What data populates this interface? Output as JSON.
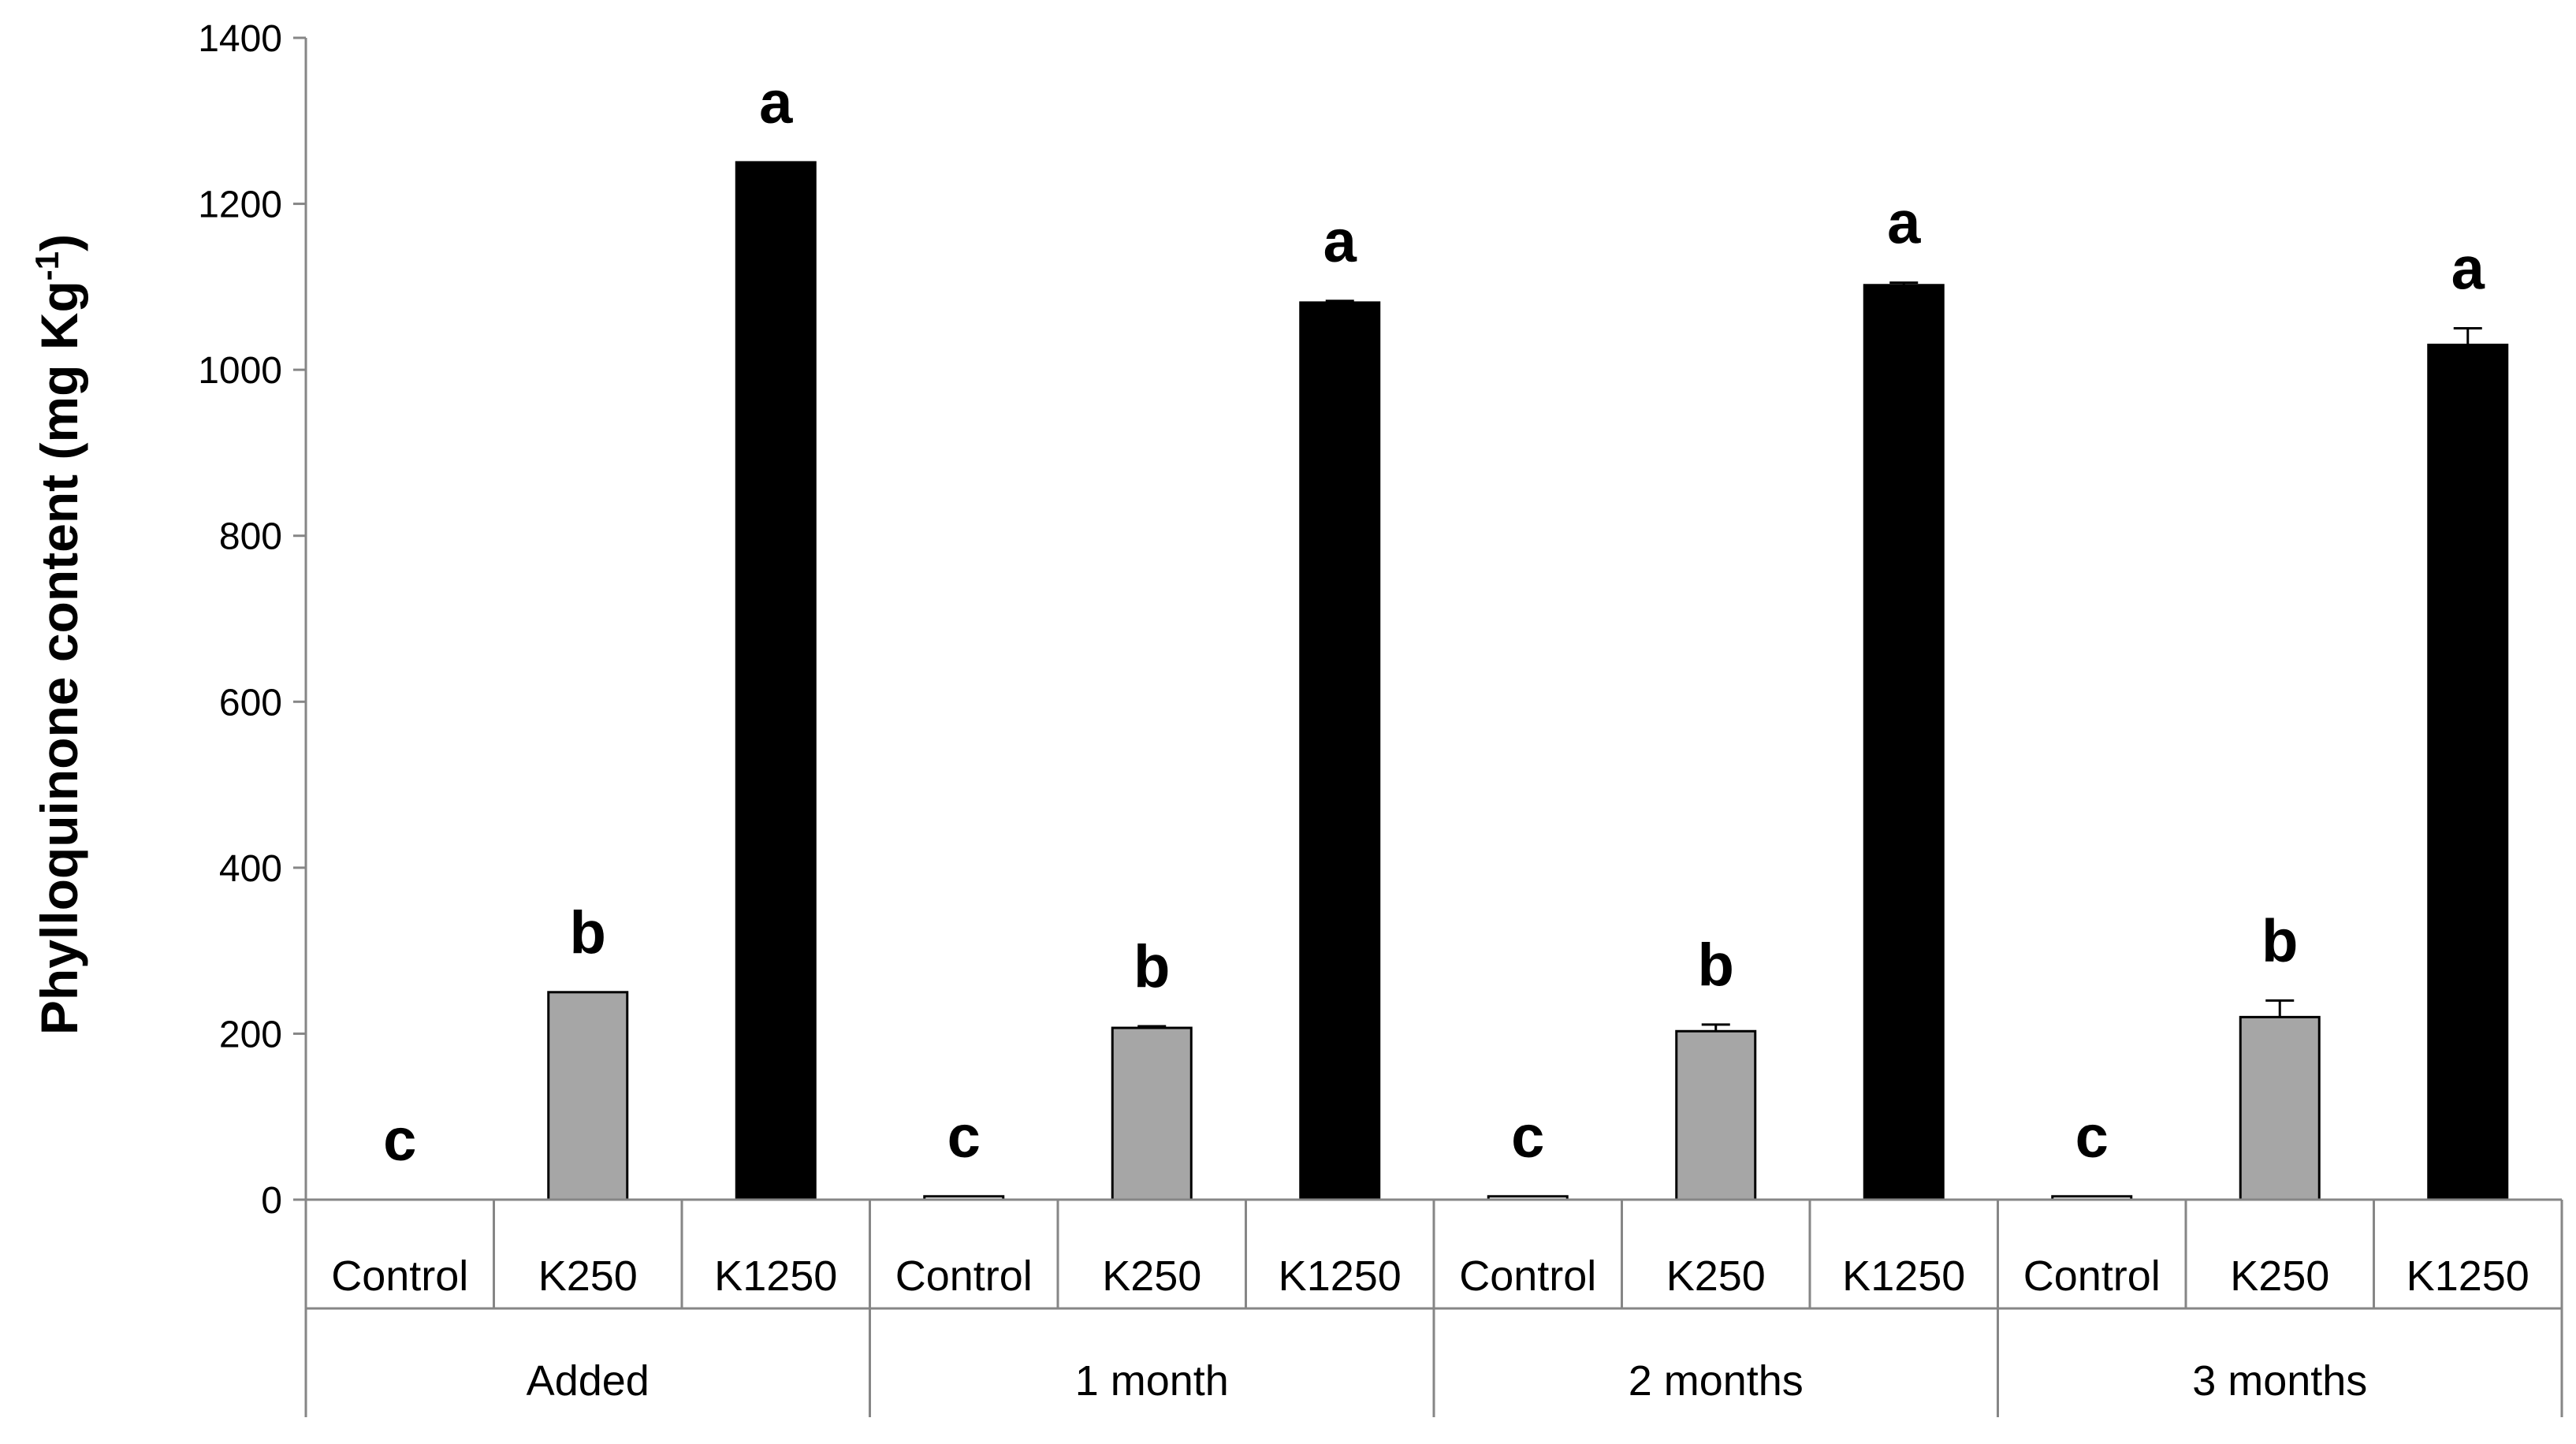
{
  "chart_data": {
    "type": "bar",
    "ylabel": "Phylloquinone  content (mg Kg",
    "ylabel_superscript": "-1",
    "ylabel_close": ")",
    "ylim": [
      0,
      1400
    ],
    "yticks": [
      0,
      200,
      400,
      600,
      800,
      1000,
      1200,
      1400
    ],
    "grid": false,
    "legend": "none",
    "groups": [
      {
        "label": "Added",
        "bars": [
          {
            "label": "Control",
            "value": 0,
            "error": 0,
            "sig": "c",
            "color": "#ffffff"
          },
          {
            "label": "K250",
            "value": 250,
            "error": 0,
            "sig": "b",
            "color": "#a6a6a6"
          },
          {
            "label": "K1250",
            "value": 1250,
            "error": 0,
            "sig": "a",
            "color": "#000000"
          }
        ]
      },
      {
        "label": "1 month",
        "bars": [
          {
            "label": "Control",
            "value": 4,
            "error": 0,
            "sig": "c",
            "color": "#ffffff"
          },
          {
            "label": "K250",
            "value": 207,
            "error": 2,
            "sig": "b",
            "color": "#a6a6a6"
          },
          {
            "label": "K1250",
            "value": 1081,
            "error": 2,
            "sig": "a",
            "color": "#000000"
          }
        ]
      },
      {
        "label": "2 months",
        "bars": [
          {
            "label": "Control",
            "value": 4,
            "error": 0,
            "sig": "c",
            "color": "#ffffff"
          },
          {
            "label": "K250",
            "value": 203,
            "error": 8,
            "sig": "b",
            "color": "#a6a6a6"
          },
          {
            "label": "K1250",
            "value": 1102,
            "error": 3,
            "sig": "a",
            "color": "#000000"
          }
        ]
      },
      {
        "label": "3 months",
        "bars": [
          {
            "label": "Control",
            "value": 4,
            "error": 0,
            "sig": "c",
            "color": "#ffffff"
          },
          {
            "label": "K250",
            "value": 220,
            "error": 20,
            "sig": "b",
            "color": "#a6a6a6"
          },
          {
            "label": "K1250",
            "value": 1030,
            "error": 20,
            "sig": "a",
            "color": "#000000"
          }
        ]
      }
    ]
  }
}
